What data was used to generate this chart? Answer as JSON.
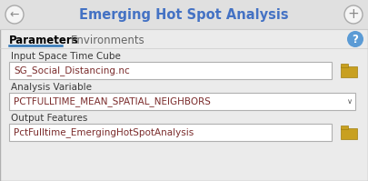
{
  "title": "Emerging Hot Spot Analysis",
  "tab1": "Parameters",
  "tab2": "Environments",
  "label1": "Input Space Time Cube",
  "field1": "SG_Social_Distancing.nc",
  "label2": "Analysis Variable",
  "field2": "PCTFULLTIME_MEAN_SPATIAL_NEIGHBORS",
  "label3": "Output Features",
  "field3": "PctFulltime_EmergingHotSpotAnalysis",
  "bg_color": "#ebebeb",
  "header_bg": "#e8e8e8",
  "title_color": "#4472c4",
  "field_bg": "#ffffff",
  "field_border": "#b0b0b0",
  "field_text_color": "#7b2c2c",
  "label_color": "#3a3a3a",
  "tab_underline_color": "#2e75b6",
  "tab_text_color_active": "#000000",
  "tab_text_color_inactive": "#666666",
  "help_circle_color": "#5b9bd5",
  "folder_color": "#c8a020",
  "arrow_color": "#888888",
  "separator_color": "#cccccc",
  "border_color": "#b0b0b0",
  "chevron_color": "#555555"
}
